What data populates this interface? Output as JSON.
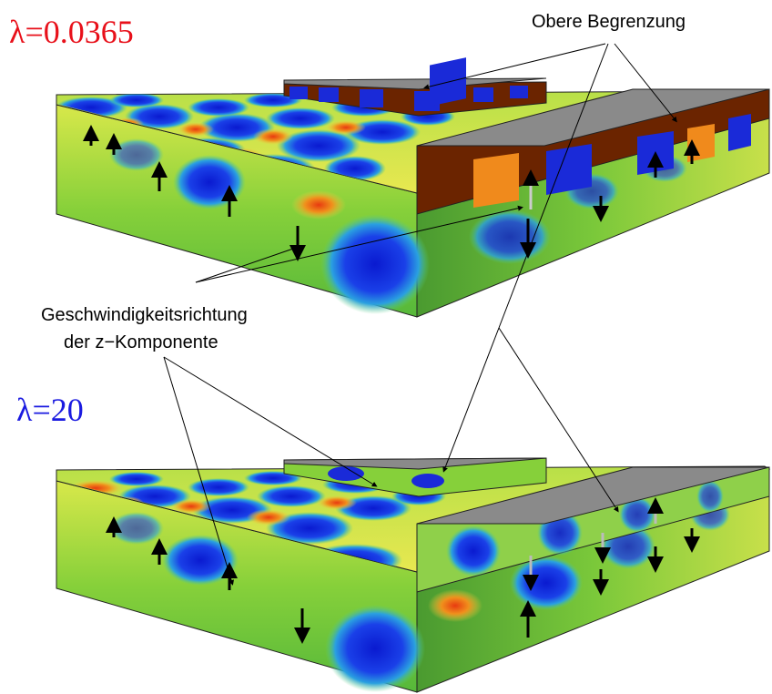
{
  "labels": {
    "lambda_top": "λ=0.0365",
    "lambda_bottom": "λ=20",
    "upper_boundary": "Obere Begrenzung",
    "velocity_line1": "Geschwindigkeitsrichtung",
    "velocity_line2": "der z−Komponente"
  },
  "colors": {
    "lambda_top": "#e8101a",
    "lambda_bottom": "#1a1ae0",
    "hot": "#6b2400",
    "warm": "#f08a1c",
    "mid": "#7ed13c",
    "cold": "#0a2ad8",
    "boundary": "#8a8a8a"
  }
}
